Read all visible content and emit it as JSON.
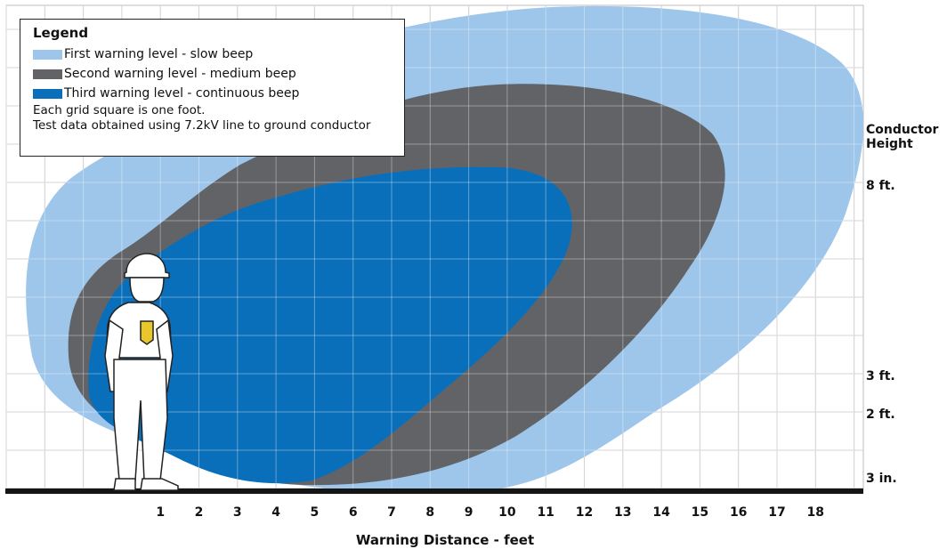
{
  "legend": {
    "title": "Legend",
    "items": [
      {
        "label": "First warning level - slow beep",
        "color": "#9dc6ea"
      },
      {
        "label": "Second warning level - medium beep",
        "color": "#626366"
      },
      {
        "label": "Third warning level - continuous beep",
        "color": "#0a6fba"
      }
    ],
    "note1": "Each grid square is one foot.",
    "note2": "Test data obtained using 7.2kV line to ground conductor"
  },
  "conductor_height": {
    "title_line1": "Conductor",
    "title_line2": "Height",
    "labels": [
      "8 ft.",
      "3 ft.",
      "2 ft.",
      "3 in."
    ]
  },
  "x_axis": {
    "title": "Warning Distance - feet",
    "ticks": [
      "1",
      "2",
      "3",
      "4",
      "5",
      "6",
      "7",
      "8",
      "9",
      "10",
      "11",
      "12",
      "13",
      "14",
      "15",
      "16",
      "17",
      "18"
    ]
  },
  "colors": {
    "grid": "#bdbdbd",
    "ground": "#151515",
    "first": "#9dc6ea",
    "second": "#626366",
    "third": "#0a6fba"
  }
}
